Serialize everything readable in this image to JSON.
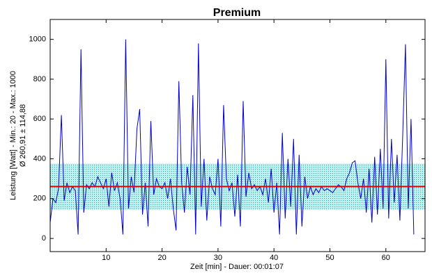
{
  "chart_data": {
    "type": "line",
    "title": "Premium",
    "ylabel": "Leistung [Watt] - Min.: 20 - Max.: 1000",
    "ylabel2": "Ø 260,91 ± 114,88",
    "xlabel": "Zeit [min] - Dauer: 00:01:07",
    "x": [
      0,
      0.5,
      1,
      1.5,
      2,
      2.5,
      3,
      3.5,
      4,
      4.5,
      5,
      5.5,
      6,
      6.5,
      7,
      7.5,
      8,
      8.5,
      9,
      9.5,
      10,
      10.5,
      11,
      11.5,
      12,
      12.5,
      13,
      13.5,
      14,
      14.5,
      15,
      15.5,
      16,
      16.5,
      17,
      17.5,
      18,
      18.5,
      19,
      19.5,
      20,
      20.5,
      21,
      21.5,
      22,
      22.5,
      23,
      23.5,
      24,
      24.5,
      25,
      25.5,
      26,
      26.5,
      27,
      27.5,
      28,
      28.5,
      29,
      29.5,
      30,
      30.5,
      31,
      31.5,
      32,
      32.5,
      33,
      33.5,
      34,
      34.5,
      35,
      35.5,
      36,
      36.5,
      37,
      37.5,
      38,
      38.5,
      39,
      39.5,
      40,
      40.5,
      41,
      41.5,
      42,
      42.5,
      43,
      43.5,
      44,
      44.5,
      45,
      45.5,
      46,
      46.5,
      47,
      47.5,
      48,
      48.5,
      49,
      49.5,
      50,
      50.5,
      51,
      51.5,
      52,
      52.5,
      53,
      53.5,
      54,
      54.5,
      55,
      55.5,
      56,
      56.5,
      57,
      57.5,
      58,
      58.5,
      59,
      59.5,
      60,
      60.5,
      61,
      61.5,
      62,
      62.5,
      63,
      63.5,
      64,
      64.5,
      65
    ],
    "series": [
      {
        "name": "Leistung",
        "color": "#0000cc",
        "values": [
          80,
          200,
          180,
          250,
          620,
          190,
          280,
          230,
          260,
          240,
          20,
          950,
          130,
          270,
          250,
          280,
          260,
          310,
          280,
          250,
          300,
          160,
          330,
          240,
          280,
          200,
          20,
          1000,
          150,
          310,
          230,
          550,
          650,
          120,
          280,
          60,
          590,
          220,
          300,
          260,
          250,
          280,
          200,
          300,
          150,
          40,
          790,
          280,
          130,
          360,
          220,
          720,
          20,
          980,
          160,
          400,
          90,
          310,
          250,
          220,
          400,
          60,
          670,
          300,
          240,
          280,
          110,
          320,
          60,
          690,
          210,
          330,
          250,
          270,
          240,
          260,
          220,
          300,
          180,
          350,
          130,
          280,
          20,
          530,
          100,
          400,
          160,
          500,
          20,
          420,
          60,
          310,
          200,
          260,
          220,
          250,
          230,
          260,
          240,
          250,
          240,
          230,
          250,
          270,
          260,
          240,
          300,
          330,
          380,
          390,
          280,
          200,
          300,
          130,
          350,
          80,
          410,
          120,
          450,
          150,
          900,
          100,
          500,
          180,
          420,
          90,
          510,
          975,
          150,
          600,
          20
        ]
      }
    ],
    "mean": 260.91,
    "std": 114.88,
    "mean_color": "#ee0000",
    "band_color": "#3cc8c8",
    "xlim": [
      0,
      67
    ],
    "ylim": [
      -66,
      1100
    ],
    "xticks": [
      10,
      20,
      30,
      40,
      50,
      60
    ],
    "yticks": [
      0,
      200,
      400,
      600,
      800,
      1000
    ]
  }
}
